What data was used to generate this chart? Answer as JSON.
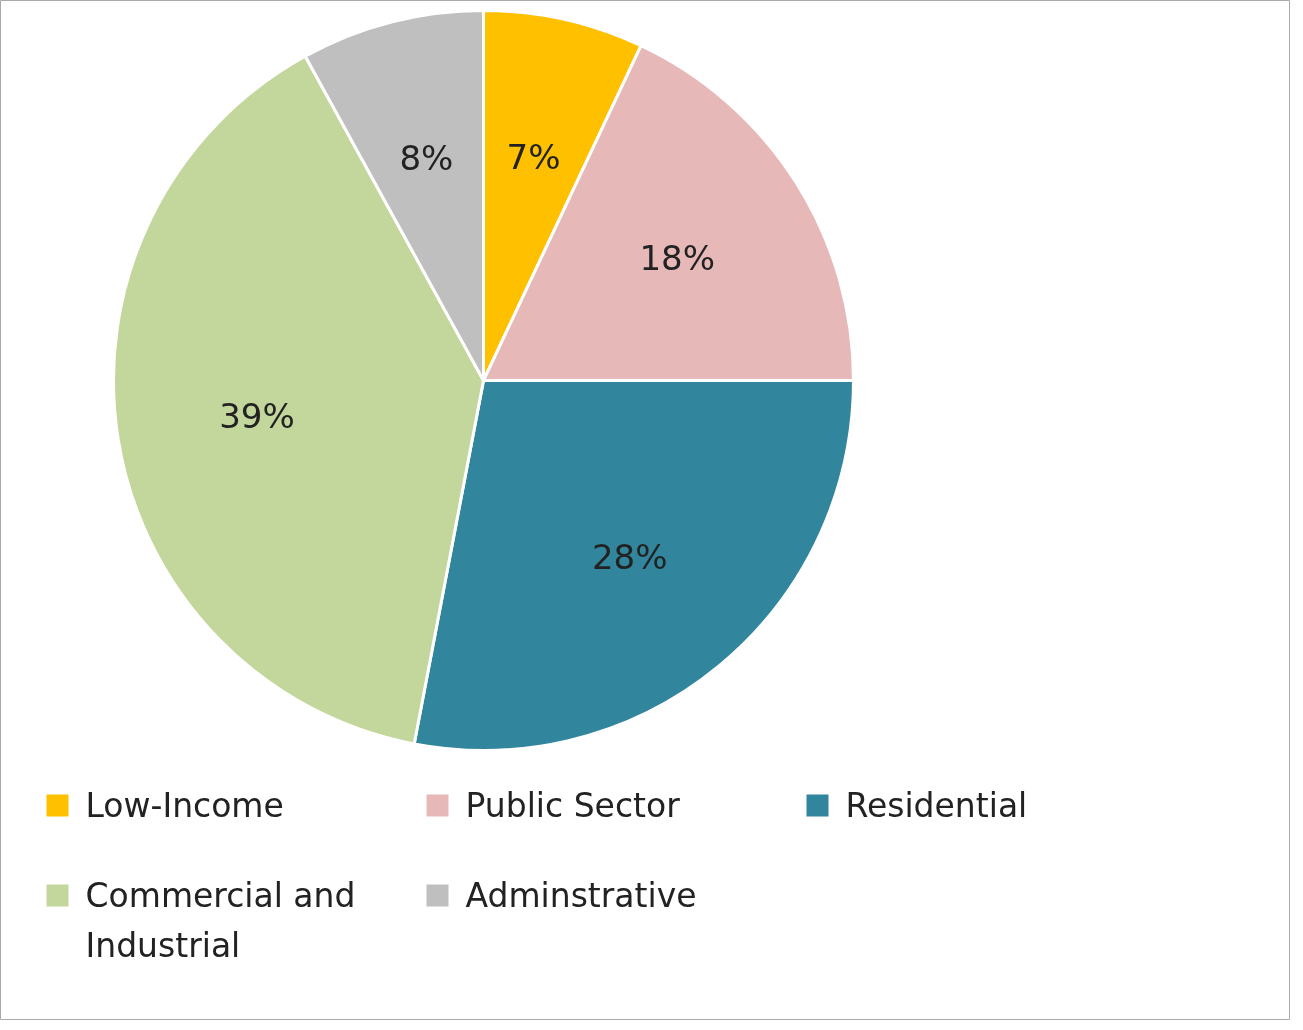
{
  "chart_data": {
    "type": "pie",
    "categories": [
      "Low-Income",
      "Public Sector",
      "Residential",
      "Commercial and Industrial",
      "Adminstrative"
    ],
    "values": [
      7,
      18,
      28,
      39,
      8
    ],
    "colors": [
      "#ffc000",
      "#e6b9b8",
      "#31859c",
      "#c3d69b",
      "#bfbfbf"
    ],
    "value_labels": [
      "7%",
      "18%",
      "28%",
      "39%",
      "8%"
    ],
    "legend": "bottom"
  }
}
